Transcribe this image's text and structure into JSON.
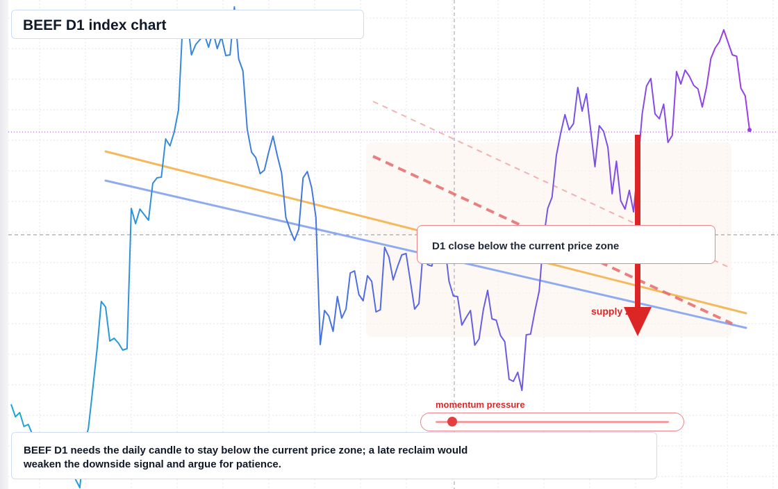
{
  "title": "BEEF D1 index chart",
  "callout": {
    "text": "D1 close below the current price zone"
  },
  "supply_label": "supply zone",
  "momentum": {
    "label": "momentum pressure",
    "level": 0.07
  },
  "note": "BEEF D1 needs the daily candle to stay below the current price zone; a late reclaim would weaken the downside signal and argue for patience.",
  "colors": {
    "price_start": "#1aa6d6",
    "price_mid": "#4a6fe0",
    "price_end": "#9b3ce6",
    "trend_orange": "#f5b85a",
    "trend_blue": "#8fabf0",
    "channel_red": "#e66a6a",
    "arrow": "#dc2626"
  },
  "chart_data": {
    "type": "line",
    "ylim": [
      0,
      704
    ],
    "grid": true,
    "series": [
      {
        "values": [
          582,
          600,
          594,
          614,
          611,
          626,
          624,
          630,
          631,
          625,
          630,
          660,
          662,
          672,
          673,
          690,
          702,
          640,
          617,
          561,
          504,
          434,
          442,
          491,
          487,
          494,
          504,
          502,
          300,
          322,
          301,
          309,
          317,
          264,
          256,
          255,
          200,
          210,
          190,
          158,
          29,
          25,
          79,
          64,
          57,
          49,
          68,
          45,
          70,
          53,
          80,
          79,
          10,
          85,
          102,
          186,
          219,
          227,
          250,
          245,
          219,
          196,
          224,
          249,
          313,
          331,
          346,
          330,
          256,
          247,
          270,
          313,
          496,
          447,
          455,
          477,
          427,
          458,
          445,
          393,
          390,
          424,
          433,
          397,
          405,
          449,
          446,
          356,
          370,
          403,
          384,
          367,
          365,
          405,
          445,
          437,
          359,
          381,
          383,
          355,
          363,
          352,
          405,
          426,
          427,
          468,
          457,
          447,
          497,
          488,
          446,
          418,
          459,
          461,
          483,
          492,
          546,
          549,
          536,
          562,
          482,
          481,
          448,
          419,
          345,
          300,
          284,
          224,
          192,
          165,
          187,
          178,
          126,
          160,
          135,
          187,
          240,
          181,
          189,
          212,
          279,
          232,
          289,
          301,
          274,
          305,
          237,
          164,
          124,
          113,
          164,
          171,
          150,
          205,
          195,
          103,
          121,
          101,
          110,
          123,
          128,
          154,
          125,
          84,
          69,
          60,
          43,
          61,
          79,
          81,
          127,
          138,
          187
        ]
      }
    ],
    "current_price_y": 190,
    "horizontal_level_y": 338,
    "trendlines": [
      {
        "name": "",
        "from": [
          152,
          218
        ],
        "to": [
          1074,
          451
        ]
      },
      {
        "name": "",
        "from": [
          152,
          260
        ],
        "to": [
          1074,
          472
        ]
      }
    ],
    "channel_lines": [
      {
        "from": [
          537,
          225
        ],
        "to": [
          1054,
          466
        ]
      },
      {
        "from": [
          537,
          146
        ],
        "to": [
          1054,
          387
        ]
      }
    ]
  }
}
